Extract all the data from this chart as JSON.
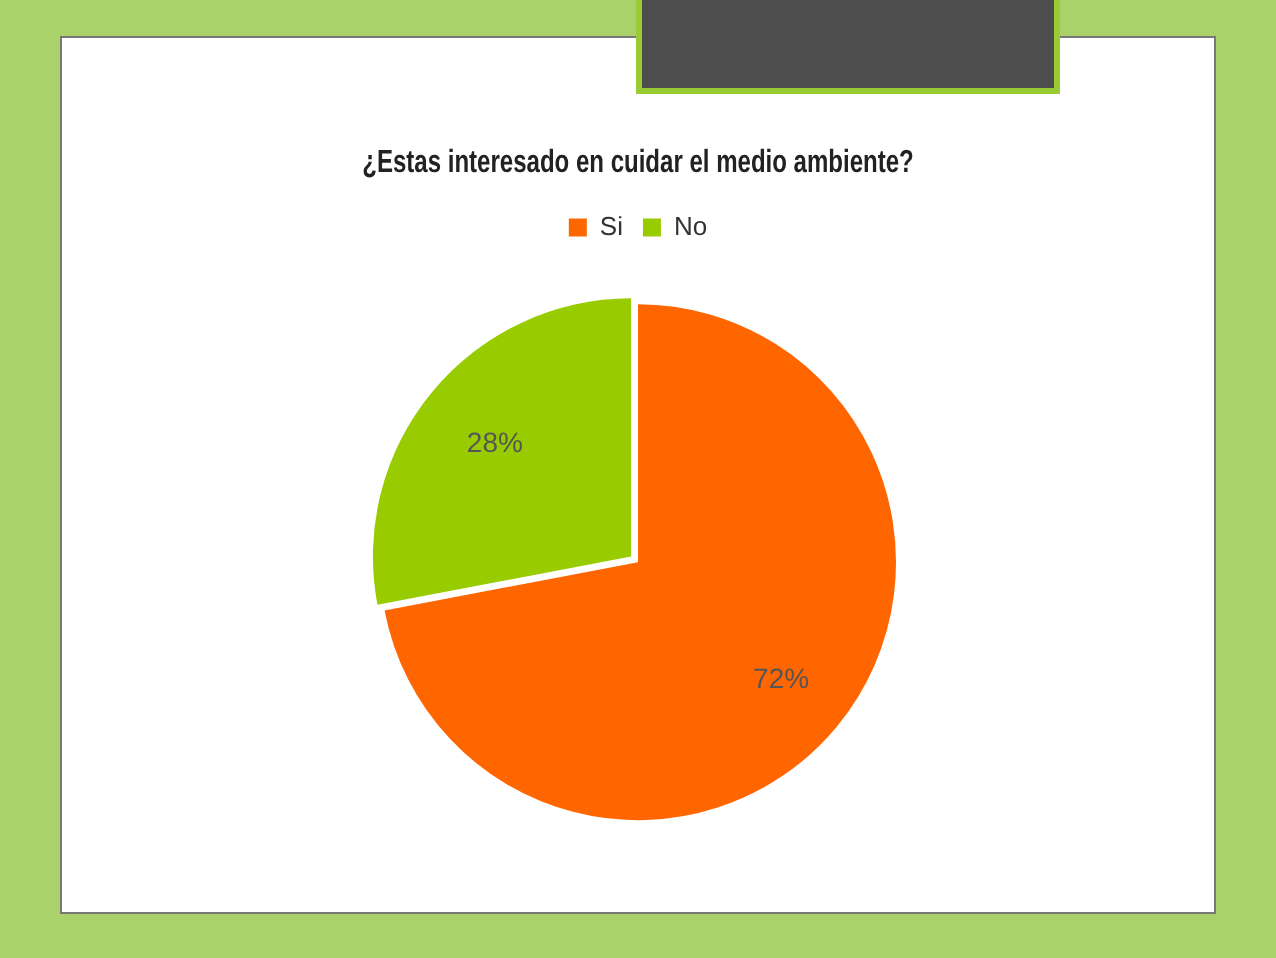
{
  "chart_data": {
    "type": "pie",
    "title": "¿Estas interesado en cuidar el medio ambiente?",
    "categories": [
      "Si",
      "No"
    ],
    "values": [
      72,
      28
    ],
    "colors": [
      "#ff6600",
      "#99cc00"
    ],
    "value_labels": [
      "72%",
      "28%"
    ],
    "legend": "top"
  }
}
